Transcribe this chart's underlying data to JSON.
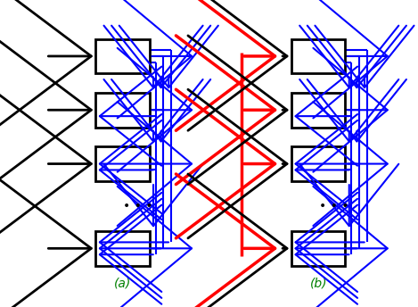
{
  "fig_width": 4.69,
  "fig_height": 3.44,
  "dpi": 100,
  "bg_color": "#ffffff",
  "box_color": "#000000",
  "box_fill": "#ffffff",
  "black_color": "#000000",
  "blue_color": "#0000ff",
  "red_color": "#ff0000",
  "green_color": "#008000",
  "label_a": "(a)",
  "label_b": "(b)",
  "label_fontsize": 10
}
